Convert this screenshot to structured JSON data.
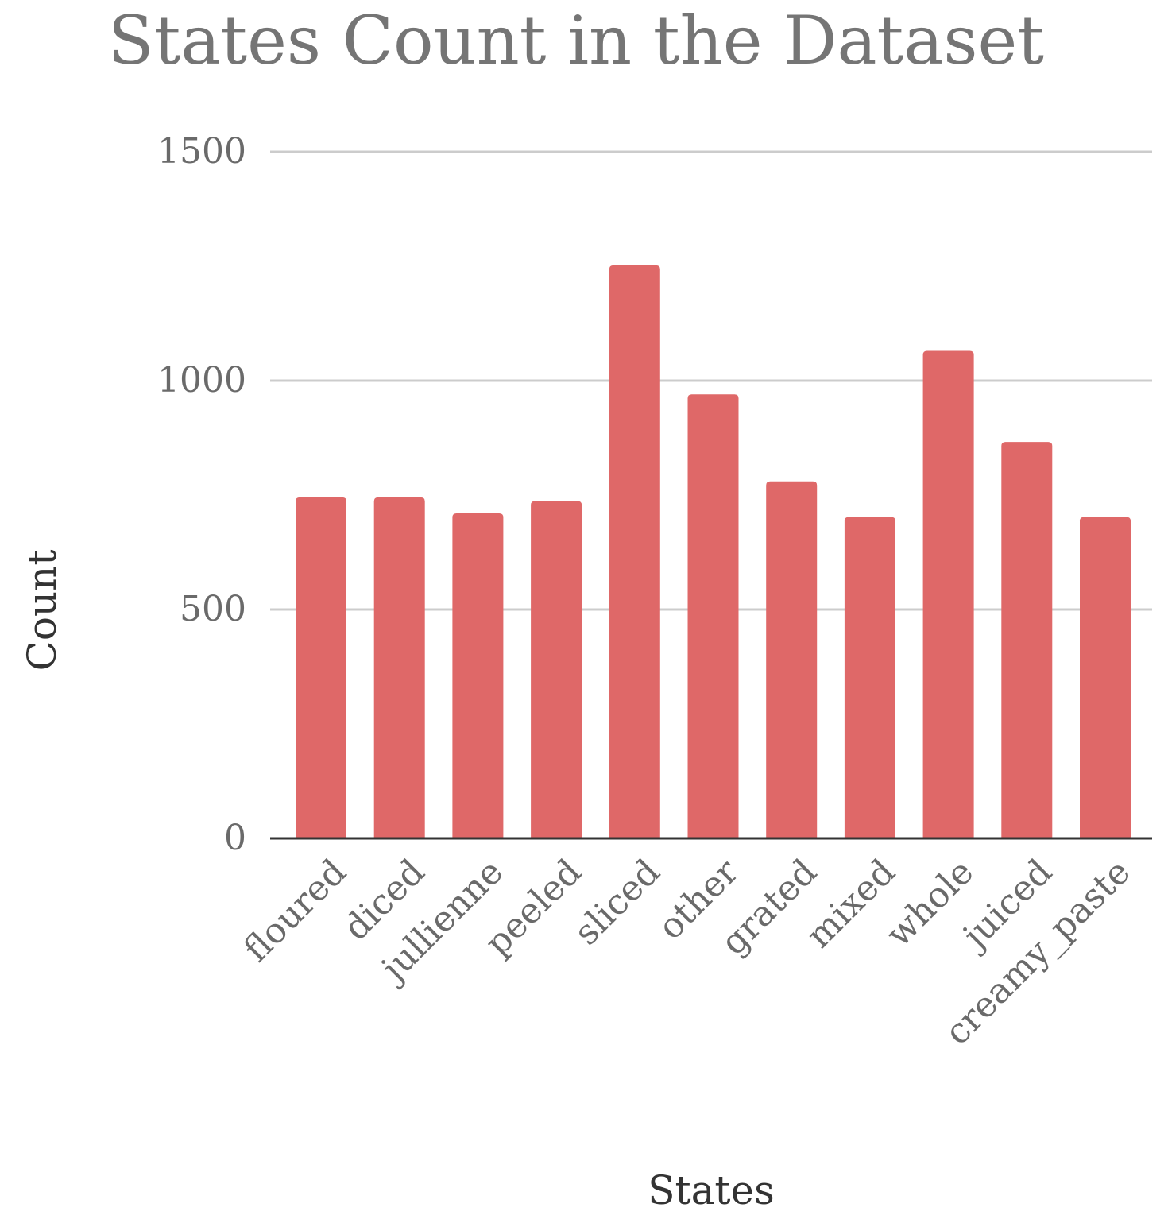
{
  "chart_data": {
    "type": "bar",
    "title": "States Count in the Dataset",
    "xlabel": "States",
    "ylabel": "Count",
    "categories": [
      "floured",
      "diced",
      "jullienne",
      "peeled",
      "sliced",
      "other",
      "grated",
      "mixed",
      "whole",
      "juiced",
      "creamy_paste"
    ],
    "values": [
      745,
      745,
      710,
      737,
      1252,
      970,
      780,
      702,
      1065,
      866,
      702
    ],
    "ylim": [
      0,
      1600
    ],
    "yticks": [
      0,
      500,
      1000,
      1500
    ],
    "grid": true,
    "bar_color": "#df6868"
  }
}
